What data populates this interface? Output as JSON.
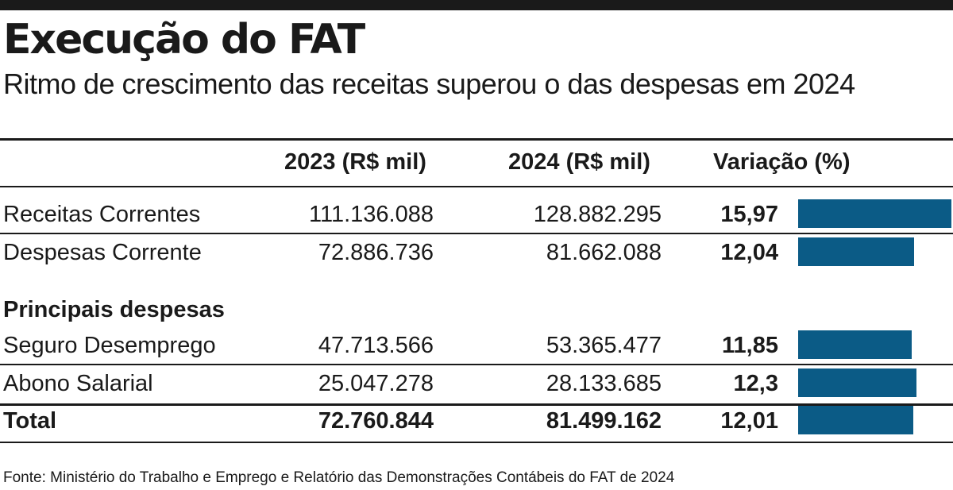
{
  "title": "Execução do FAT",
  "subtitle": "Ritmo de crescimento das receitas superou o das despesas em 2024",
  "source": "Fonte: Ministério do Trabalho e Emprego e Relatório das Demonstrações Contábeis do FAT de 2024",
  "columns": {
    "c2023": "2023 (R$ mil)",
    "c2024": "2024 (R$ mil)",
    "variation": "Variação (%)"
  },
  "section_label": "Principais despesas",
  "colors": {
    "bar": "#0b5b86",
    "text": "#1a1a1a"
  },
  "chart_data": {
    "type": "table",
    "columns": [
      "",
      "2023 (R$ mil)",
      "2024 (R$ mil)",
      "Variação (%)"
    ],
    "rows": [
      {
        "label": "Receitas Correntes",
        "v2023": "111.136.088",
        "v2024": "128.882.295",
        "pct_label": "15,97",
        "pct": 15.97,
        "bold": false
      },
      {
        "label": "Despesas Corrente",
        "v2023": "72.886.736",
        "v2024": "81.662.088",
        "pct_label": "12,04",
        "pct": 12.04,
        "bold": false
      },
      {
        "label": "Seguro Desemprego",
        "v2023": "47.713.566",
        "v2024": "53.365.477",
        "pct_label": "11,85",
        "pct": 11.85,
        "bold": false
      },
      {
        "label": "Abono Salarial",
        "v2023": "25.047.278",
        "v2024": "28.133.685",
        "pct_label": "12,3",
        "pct": 12.3,
        "bold": false
      },
      {
        "label": "Total",
        "v2023": "72.760.844",
        "v2024": "81.499.162",
        "pct_label": "12,01",
        "pct": 12.01,
        "bold": true
      }
    ]
  }
}
